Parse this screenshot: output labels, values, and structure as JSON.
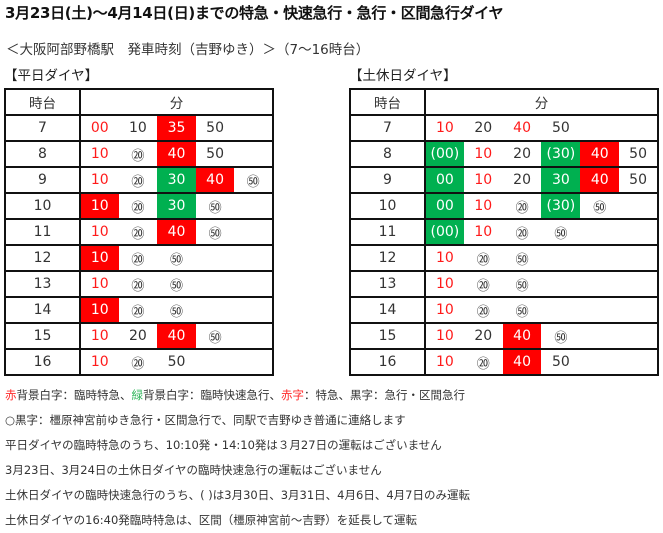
{
  "title": "3月23日(土)～4月14日(日)までの特急・快速急行・急行・区間急行ダイヤ",
  "subtitle": "＜大阪阿部野橋駅　発車時刻（吉野ゆき）＞（7～16時台）",
  "colors": {
    "red_bg": "#ff0000",
    "green_bg": "#00b050",
    "red_text": "#ff1a1a",
    "black_text": "#333333"
  },
  "weekday": {
    "label": "【平日ダイヤ】",
    "header": {
      "hour": "時台",
      "minute": "分"
    },
    "rows": [
      {
        "hour": "7",
        "cells": [
          {
            "t": "00",
            "s": "red-text"
          },
          {
            "t": "10",
            "s": ""
          },
          {
            "t": "35",
            "s": "red-bg"
          },
          {
            "t": "50",
            "s": ""
          },
          {
            "t": "",
            "s": ""
          }
        ]
      },
      {
        "hour": "8",
        "cells": [
          {
            "t": "10",
            "s": "red-text"
          },
          {
            "t": "⑳",
            "s": "circ"
          },
          {
            "t": "40",
            "s": "red-bg"
          },
          {
            "t": "50",
            "s": ""
          },
          {
            "t": "",
            "s": ""
          }
        ]
      },
      {
        "hour": "9",
        "cells": [
          {
            "t": "10",
            "s": "red-text"
          },
          {
            "t": "⑳",
            "s": "circ"
          },
          {
            "t": "30",
            "s": "green-bg"
          },
          {
            "t": "40",
            "s": "red-bg"
          },
          {
            "t": "㊿",
            "s": "circ"
          }
        ]
      },
      {
        "hour": "10",
        "cells": [
          {
            "t": "10",
            "s": "red-bg"
          },
          {
            "t": "⑳",
            "s": "circ"
          },
          {
            "t": "30",
            "s": "green-bg"
          },
          {
            "t": "㊿",
            "s": "circ"
          },
          {
            "t": "",
            "s": ""
          }
        ]
      },
      {
        "hour": "11",
        "cells": [
          {
            "t": "10",
            "s": "red-text"
          },
          {
            "t": "⑳",
            "s": "circ"
          },
          {
            "t": "40",
            "s": "red-bg"
          },
          {
            "t": "㊿",
            "s": "circ"
          },
          {
            "t": "",
            "s": ""
          }
        ]
      },
      {
        "hour": "12",
        "cells": [
          {
            "t": "10",
            "s": "red-bg"
          },
          {
            "t": "⑳",
            "s": "circ"
          },
          {
            "t": "㊿",
            "s": "circ"
          },
          {
            "t": "",
            "s": ""
          },
          {
            "t": "",
            "s": ""
          }
        ]
      },
      {
        "hour": "13",
        "cells": [
          {
            "t": "10",
            "s": "red-text"
          },
          {
            "t": "⑳",
            "s": "circ"
          },
          {
            "t": "㊿",
            "s": "circ"
          },
          {
            "t": "",
            "s": ""
          },
          {
            "t": "",
            "s": ""
          }
        ]
      },
      {
        "hour": "14",
        "cells": [
          {
            "t": "10",
            "s": "red-bg"
          },
          {
            "t": "⑳",
            "s": "circ"
          },
          {
            "t": "㊿",
            "s": "circ"
          },
          {
            "t": "",
            "s": ""
          },
          {
            "t": "",
            "s": ""
          }
        ]
      },
      {
        "hour": "15",
        "cells": [
          {
            "t": "10",
            "s": "red-text"
          },
          {
            "t": "20",
            "s": ""
          },
          {
            "t": "40",
            "s": "red-bg"
          },
          {
            "t": "㊿",
            "s": "circ"
          },
          {
            "t": "",
            "s": ""
          }
        ]
      },
      {
        "hour": "16",
        "cells": [
          {
            "t": "10",
            "s": "red-text"
          },
          {
            "t": "⑳",
            "s": "circ"
          },
          {
            "t": "50",
            "s": ""
          },
          {
            "t": "",
            "s": ""
          },
          {
            "t": "",
            "s": ""
          }
        ]
      }
    ]
  },
  "holiday": {
    "label": "【土休日ダイヤ】",
    "header": {
      "hour": "時台",
      "minute": "分"
    },
    "rows": [
      {
        "hour": "7",
        "cells": [
          {
            "t": "10",
            "s": "red-text"
          },
          {
            "t": "20",
            "s": ""
          },
          {
            "t": "40",
            "s": "red-text"
          },
          {
            "t": "50",
            "s": ""
          },
          {
            "t": "",
            "s": ""
          },
          {
            "t": "",
            "s": ""
          }
        ]
      },
      {
        "hour": "8",
        "cells": [
          {
            "t": "(00)",
            "s": "green-bg"
          },
          {
            "t": "10",
            "s": "red-text"
          },
          {
            "t": "20",
            "s": ""
          },
          {
            "t": "(30)",
            "s": "green-bg"
          },
          {
            "t": "40",
            "s": "red-bg"
          },
          {
            "t": "50",
            "s": ""
          }
        ]
      },
      {
        "hour": "9",
        "cells": [
          {
            "t": "00",
            "s": "green-bg"
          },
          {
            "t": "10",
            "s": "red-text"
          },
          {
            "t": "20",
            "s": ""
          },
          {
            "t": "30",
            "s": "green-bg"
          },
          {
            "t": "40",
            "s": "red-bg"
          },
          {
            "t": "50",
            "s": ""
          }
        ]
      },
      {
        "hour": "10",
        "cells": [
          {
            "t": "00",
            "s": "green-bg"
          },
          {
            "t": "10",
            "s": "red-text"
          },
          {
            "t": "⑳",
            "s": "circ"
          },
          {
            "t": "(30)",
            "s": "green-bg"
          },
          {
            "t": "㊿",
            "s": "circ"
          },
          {
            "t": "",
            "s": ""
          }
        ]
      },
      {
        "hour": "11",
        "cells": [
          {
            "t": "(00)",
            "s": "green-bg"
          },
          {
            "t": "10",
            "s": "red-text"
          },
          {
            "t": "⑳",
            "s": "circ"
          },
          {
            "t": "㊿",
            "s": "circ"
          },
          {
            "t": "",
            "s": ""
          },
          {
            "t": "",
            "s": ""
          }
        ]
      },
      {
        "hour": "12",
        "cells": [
          {
            "t": "10",
            "s": "red-text"
          },
          {
            "t": "⑳",
            "s": "circ"
          },
          {
            "t": "㊿",
            "s": "circ"
          },
          {
            "t": "",
            "s": ""
          },
          {
            "t": "",
            "s": ""
          },
          {
            "t": "",
            "s": ""
          }
        ]
      },
      {
        "hour": "13",
        "cells": [
          {
            "t": "10",
            "s": "red-text"
          },
          {
            "t": "⑳",
            "s": "circ"
          },
          {
            "t": "㊿",
            "s": "circ"
          },
          {
            "t": "",
            "s": ""
          },
          {
            "t": "",
            "s": ""
          },
          {
            "t": "",
            "s": ""
          }
        ]
      },
      {
        "hour": "14",
        "cells": [
          {
            "t": "10",
            "s": "red-text"
          },
          {
            "t": "⑳",
            "s": "circ"
          },
          {
            "t": "㊿",
            "s": "circ"
          },
          {
            "t": "",
            "s": ""
          },
          {
            "t": "",
            "s": ""
          },
          {
            "t": "",
            "s": ""
          }
        ]
      },
      {
        "hour": "15",
        "cells": [
          {
            "t": "10",
            "s": "red-text"
          },
          {
            "t": "20",
            "s": ""
          },
          {
            "t": "40",
            "s": "red-bg"
          },
          {
            "t": "㊿",
            "s": "circ"
          },
          {
            "t": "",
            "s": ""
          },
          {
            "t": "",
            "s": ""
          }
        ]
      },
      {
        "hour": "16",
        "cells": [
          {
            "t": "10",
            "s": "red-text"
          },
          {
            "t": "⑳",
            "s": "circ"
          },
          {
            "t": "40",
            "s": "red-bg"
          },
          {
            "t": "50",
            "s": ""
          },
          {
            "t": "",
            "s": ""
          },
          {
            "t": "",
            "s": ""
          }
        ]
      }
    ]
  },
  "legend": {
    "red_word": "赤",
    "red_bg_desc": "背景白字：臨時特急、",
    "green_word": "緑",
    "green_bg_desc": "背景白字：臨時快速急行、",
    "red_text_word": "赤字",
    "rest": "：特急、黒字：急行・区間急行"
  },
  "notes": [
    "○黒字：橿原神宮前ゆき急行・区間急行で、同駅で吉野ゆき普通に連絡します",
    "平日ダイヤの臨時特急のうち、10:10発・14:10発は３月27日の運転はございません",
    "3月23日、3月24日の土休日ダイヤの臨時快速急行の運転はございません",
    "土休日ダイヤの臨時快速急行のうち、( )は3月30日、3月31日、4月6日、4月7日のみ運転",
    "土休日ダイヤの16:40発臨時特急は、区間（橿原神宮前～吉野）を延長して運転"
  ]
}
